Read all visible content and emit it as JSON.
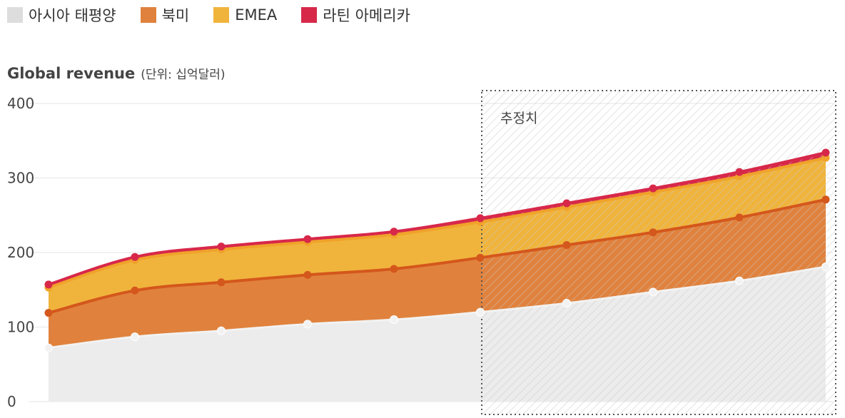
{
  "chart_data": {
    "type": "area",
    "title": "Global revenue",
    "unit_label": "(단위: 십억달러)",
    "x": [
      0,
      1,
      2,
      3,
      4,
      5,
      6,
      7,
      8,
      9
    ],
    "ylim": [
      0,
      400
    ],
    "yticks": [
      0,
      100,
      200,
      300,
      400
    ],
    "stacked": true,
    "grid": true,
    "legend_position": "top-left",
    "series": [
      {
        "name": "아시아 태평양",
        "color": "#dddddd",
        "values": [
          72,
          87,
          95,
          104,
          110,
          120,
          132,
          147,
          162,
          181
        ]
      },
      {
        "name": "북미",
        "color": "#e0823d",
        "values": [
          47,
          62,
          65,
          66,
          68,
          73,
          78,
          80,
          85,
          90
        ]
      },
      {
        "name": "EMEA",
        "color": "#f0b43c",
        "values": [
          34,
          41,
          44,
          44,
          46,
          48,
          51,
          54,
          55,
          56
        ]
      },
      {
        "name": "라틴 아메리카",
        "color": "#d7284a",
        "values": [
          4,
          4,
          4,
          4,
          4,
          5,
          5,
          5,
          6,
          7
        ]
      }
    ],
    "forecast": {
      "label": "추정치",
      "start_index": 5
    }
  }
}
